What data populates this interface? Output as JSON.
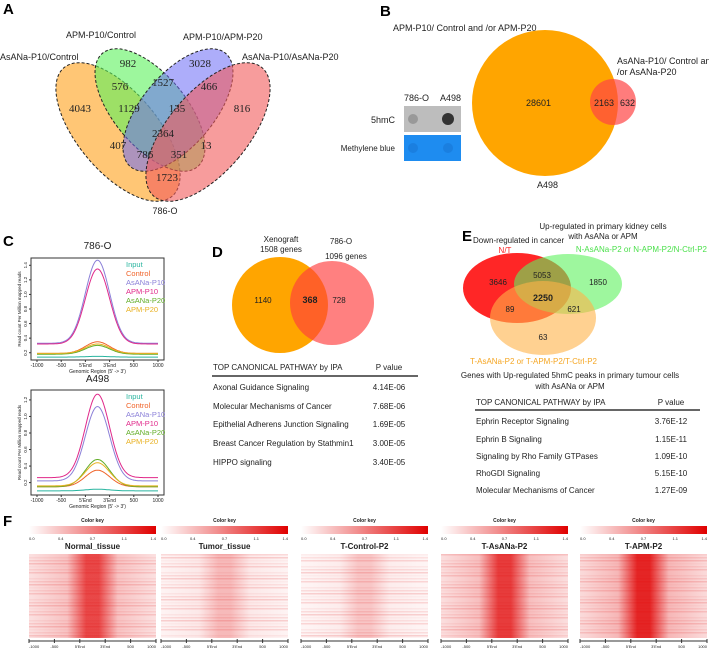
{
  "panels": {
    "A": "A",
    "B": "B",
    "C": "C",
    "D": "D",
    "E": "E",
    "F": "F"
  },
  "A": {
    "sets": [
      "AsANa-P10/Control",
      "APM-P10/Control",
      "APM-P10/APM-P20",
      "AsANa-P10/AsANa-P20"
    ],
    "counts": {
      "only_apm_ctrl": "982",
      "only_apm_p20": "3028",
      "asana_ctrl_apm_ctrl": "576",
      "apm_ctrl_apm_p20": "1527",
      "apm_p20_asana_p20": "466",
      "only_asana_ctrl": "4043",
      "three_a": "1129",
      "three_b": "135",
      "only_asana_p20": "816",
      "all": "2364",
      "asana_ctrl_apm_p20": "407",
      "three_c": "786",
      "three_d": "351",
      "apm_ctrl_asana_p20": "13",
      "asana_ctrl_asana_p20": "1723"
    },
    "cell_line": "786-O",
    "colors": {
      "orange": "#ffb347",
      "green": "#5cf25c",
      "blue": "#6a6af5",
      "red": "#f25a5a"
    }
  },
  "B": {
    "big_label": "APM-P10/ Control and /or APM-P20",
    "small_label_1": "AsANa-P10/ Control and",
    "small_label_2": "/or AsANa-P20",
    "only_big": "28601",
    "overlap": "2163",
    "only_small": "632",
    "cell_line": "A498",
    "blot": {
      "col1": "786-O",
      "col2": "A498",
      "row1": "5hmC",
      "row2": "Methylene blue"
    }
  },
  "C": {
    "chart_data": [
      {
        "type": "line",
        "title": "786-O",
        "xlabel": "Genomic Region (5' -> 3')",
        "ylabel": "Read count Per Million mapped reads",
        "xticks": [
          "-1000",
          "-500",
          "5'End",
          "3'End",
          "500",
          "1000"
        ],
        "ylim": [
          0.1,
          1.5
        ],
        "yticks": [
          "0.2",
          "0.4",
          "0.6",
          "0.8",
          "1.0",
          "1.2",
          "1.4"
        ],
        "legend_position": "top-right",
        "series": [
          {
            "name": "Input",
            "baseline": 0.14,
            "peak": 0.15,
            "color": "#2ab5a0"
          },
          {
            "name": "Control",
            "baseline": 0.19,
            "peak": 0.35,
            "color": "#f0642a"
          },
          {
            "name": "AsANa-P10",
            "baseline": 0.33,
            "peak": 1.47,
            "color": "#8b80d8"
          },
          {
            "name": "APM-P10",
            "baseline": 0.32,
            "peak": 1.35,
            "color": "#e0298a"
          },
          {
            "name": "AsANa-P20",
            "baseline": 0.18,
            "peak": 0.3,
            "color": "#62ad28"
          },
          {
            "name": "APM-P20",
            "baseline": 0.19,
            "peak": 0.32,
            "color": "#e8b020"
          }
        ]
      },
      {
        "type": "line",
        "title": "A498",
        "xlabel": "Genomic Region (5' -> 3')",
        "ylabel": "Read count Per Million mapped reads",
        "xticks": [
          "-1000",
          "-500",
          "5'End",
          "3'End",
          "500",
          "1000"
        ],
        "ylim": [
          0.05,
          1.32
        ],
        "yticks": [
          "0.2",
          "0.4",
          "0.6",
          "0.8",
          "1.0",
          "1.2"
        ],
        "legend_position": "top-right",
        "series": [
          {
            "name": "Input",
            "baseline": 0.1,
            "peak": 0.12,
            "color": "#2ab5a0"
          },
          {
            "name": "Control",
            "baseline": 0.15,
            "peak": 0.35,
            "color": "#f0642a"
          },
          {
            "name": "AsANa-P10",
            "baseline": 0.22,
            "peak": 1.12,
            "color": "#8b80d8"
          },
          {
            "name": "APM-P10",
            "baseline": 0.26,
            "peak": 1.27,
            "color": "#e0298a"
          },
          {
            "name": "AsANa-P20",
            "baseline": 0.15,
            "peak": 0.48,
            "color": "#62ad28"
          },
          {
            "name": "APM-P20",
            "baseline": 0.16,
            "peak": 0.44,
            "color": "#e8b020"
          }
        ]
      }
    ]
  },
  "D": {
    "left_label_1": "Xenograft",
    "left_label_2": "1508 genes",
    "right_label_1": "786-O",
    "right_label_2": "1096 genes",
    "only_left": "1140",
    "overlap": "368",
    "only_right": "728",
    "table": {
      "header": [
        "TOP CANONICAL PATHWAY by IPA",
        "P value"
      ],
      "rows": [
        [
          "Axonal Guidance Signaling",
          "4.14E-06"
        ],
        [
          "Molecular Mechanisms of Cancer",
          "7.68E-06"
        ],
        [
          "Epithelial Adherens Junction Signaling",
          "1.69E-05"
        ],
        [
          "Breast Cancer Regulation by Stathmin1",
          "3.00E-05"
        ],
        [
          "HIPPO signaling",
          "3.40E-05"
        ]
      ]
    }
  },
  "E": {
    "title_left": "Down-regulated in cancer",
    "title_right_1": "Up-regulated in primary kidney cells",
    "title_right_2": "with AsANa or APM",
    "set_red": "N/T",
    "set_green": "N-AsANa-P2 or N-APM-P2/N-Ctrl-P2",
    "set_orange": "T-AsANa-P2 or T-APM-P2/T-Ctrl-P2",
    "counts": {
      "red_only": "3646",
      "red_green": "5053",
      "green_only": "1850",
      "all": "2250",
      "red_orange": "89",
      "green_orange": "621",
      "orange_only": "63"
    },
    "caption_1": "Genes with Up-regulated 5hmC peaks in primary  tumour cells",
    "caption_2": "with AsANa or APM",
    "table": {
      "header": [
        "TOP CANONICAL PATHWAY by IPA",
        "P value"
      ],
      "rows": [
        [
          "Ephrin Receptor Signaling",
          "3.76E-12"
        ],
        [
          "Ephrin B Signaling",
          "1.15E-11"
        ],
        [
          "Signaling by Rho Family GTPases",
          "1.09E-10"
        ],
        [
          "RhoGDI Signaling",
          "5.15E-10"
        ],
        [
          "Molecular Mechanisms of Cancer",
          "1.27E-09"
        ]
      ]
    }
  },
  "F": {
    "color_key_title": "Color key",
    "color_key_ticks": [
      "0.0",
      "0.4",
      "0.7",
      "1.1",
      "1.4"
    ],
    "xticks": [
      "-1000",
      "-500",
      "5'End",
      "3'End",
      "500",
      "1000"
    ],
    "heatmaps": [
      {
        "title": "Normal_tissue",
        "intensity": 0.8
      },
      {
        "title": "Tumor_tissue",
        "intensity": 0.3
      },
      {
        "title": "T-Control-P2",
        "intensity": 0.25
      },
      {
        "title": "T-AsANa-P2",
        "intensity": 0.85
      },
      {
        "title": "T-APM-P2",
        "intensity": 0.95
      }
    ]
  }
}
